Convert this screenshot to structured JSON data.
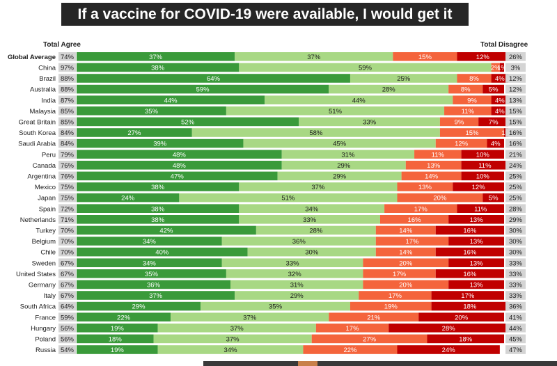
{
  "title": "If a vaccine for COVID-19 were available, I would get it",
  "header_left": "Total Agree",
  "header_right": "Total Disagree",
  "colors": {
    "strongly_agree": "#3a9a3a",
    "somewhat_agree": "#a8d884",
    "somewhat_disagree": "#f4643c",
    "strongly_disagree": "#c00000",
    "total_cell": "#d4d4d4",
    "title_bg": "#262626"
  },
  "chart_data": {
    "type": "bar",
    "orientation": "horizontal",
    "stacked": true,
    "xlim": [
      0,
      100
    ],
    "categories": [
      "Global Average",
      "China",
      "Brazil",
      "Australia",
      "India",
      "Malaysia",
      "Great Britain",
      "South Korea",
      "Saudi Arabia",
      "Peru",
      "Canada",
      "Argentina",
      "Mexico",
      "Japan",
      "Spain",
      "Netherlands",
      "Turkey",
      "Belgium",
      "Chile",
      "Sweden",
      "United States",
      "Germany",
      "Italy",
      "South Africa",
      "France",
      "Hungary",
      "Poland",
      "Russia"
    ],
    "total_agree": [
      74,
      97,
      88,
      88,
      87,
      85,
      85,
      84,
      84,
      79,
      76,
      76,
      75,
      75,
      72,
      71,
      70,
      70,
      70,
      67,
      67,
      67,
      67,
      64,
      59,
      56,
      56,
      54
    ],
    "total_disagree": [
      26,
      3,
      12,
      12,
      13,
      15,
      15,
      16,
      16,
      21,
      24,
      25,
      25,
      25,
      28,
      29,
      30,
      30,
      30,
      33,
      33,
      33,
      33,
      36,
      41,
      44,
      45,
      47
    ],
    "series": [
      {
        "values": [
          37,
          38,
          64,
          59,
          44,
          35,
          52,
          27,
          39,
          48,
          48,
          47,
          38,
          24,
          38,
          38,
          42,
          34,
          40,
          34,
          35,
          36,
          37,
          29,
          22,
          19,
          18,
          19
        ]
      },
      {
        "values": [
          37,
          59,
          25,
          28,
          44,
          51,
          33,
          58,
          45,
          31,
          29,
          29,
          37,
          51,
          34,
          33,
          28,
          36,
          30,
          33,
          32,
          31,
          29,
          35,
          37,
          37,
          37,
          34
        ]
      },
      {
        "values": [
          15,
          2,
          8,
          8,
          9,
          11,
          9,
          15,
          12,
          11,
          13,
          14,
          13,
          20,
          17,
          16,
          14,
          17,
          14,
          20,
          17,
          20,
          17,
          19,
          21,
          17,
          27,
          22
        ]
      },
      {
        "values": [
          12,
          1,
          4,
          5,
          4,
          4,
          7,
          1,
          4,
          10,
          11,
          10,
          12,
          5,
          11,
          13,
          16,
          13,
          16,
          13,
          16,
          13,
          17,
          18,
          20,
          28,
          18,
          24
        ]
      }
    ]
  }
}
